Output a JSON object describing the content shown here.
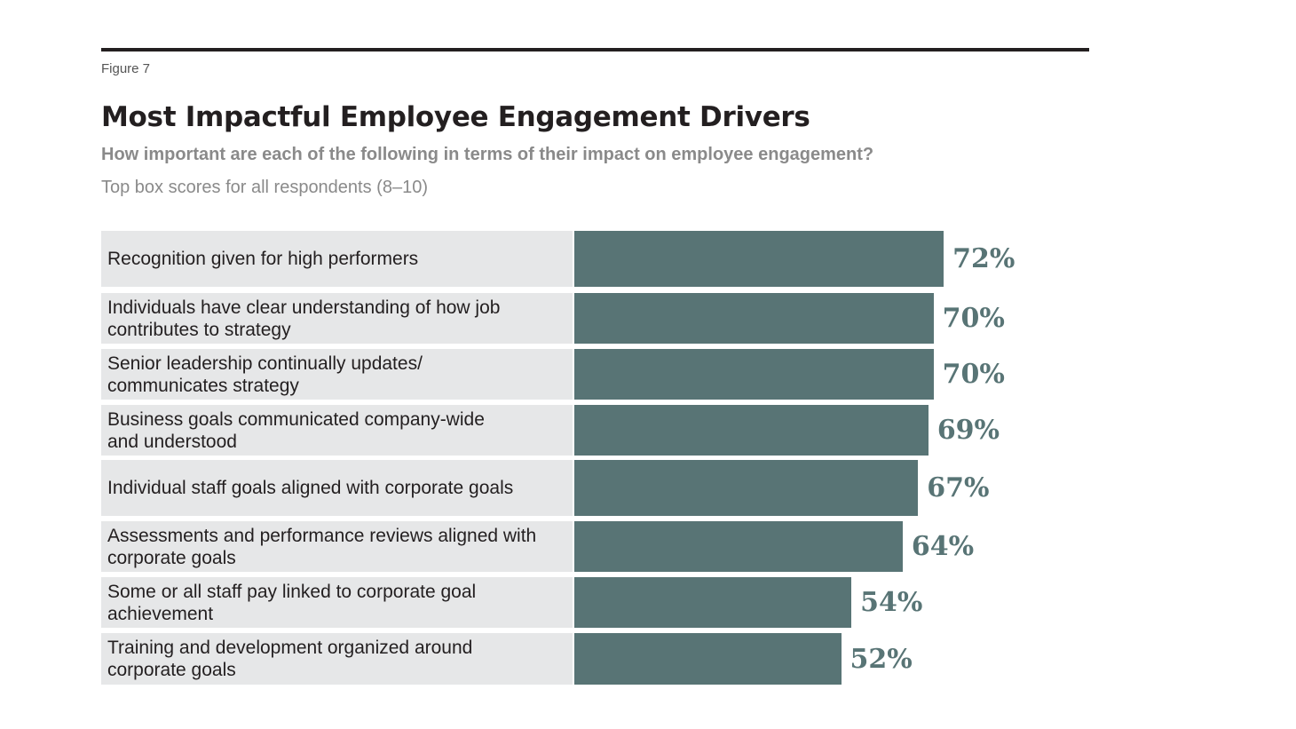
{
  "figure_label": "Figure 7",
  "chart_data": {
    "type": "bar",
    "orientation": "horizontal",
    "title": "Most Impactful Employee Engagement Drivers",
    "subtitle": "How important are each of the following in terms of their impact on employee engagement?",
    "note": "Top box scores for all respondents (8–10)",
    "categories": [
      "Recognition given for high performers",
      "Individuals have clear understanding of how job contributes to strategy",
      "Senior leadership continually updates/ communicates strategy",
      "Business goals communicated company-wide and understood",
      "Individual staff goals aligned with corporate goals",
      "Assessments and performance reviews aligned with corporate goals",
      "Some or all staff pay linked to corporate goal achievement",
      "Training and development organized around corporate goals"
    ],
    "values": [
      72,
      70,
      70,
      69,
      67,
      64,
      54,
      52
    ],
    "value_labels": [
      "72%",
      "70%",
      "70%",
      "69%",
      "67%",
      "64%",
      "54%",
      "52%"
    ],
    "xlim": [
      0,
      100
    ],
    "grid": false,
    "colors": {
      "bar": "#587475",
      "label_bg": "#e6e7e8",
      "value_text": "#587475"
    }
  }
}
